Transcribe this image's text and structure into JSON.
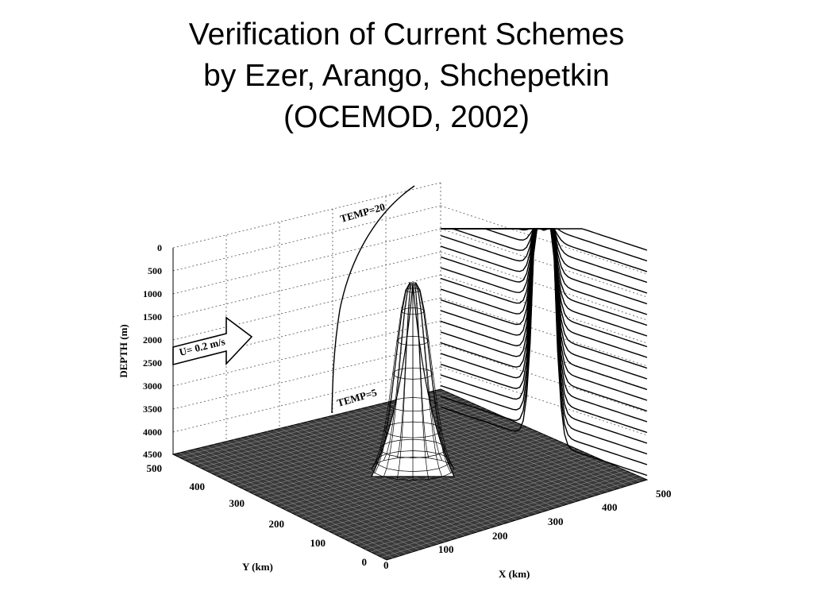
{
  "slide": {
    "title_lines": [
      "Verification of Current Schemes",
      "by Ezer, Arango, Shchepetkin",
      "(OCEMOD, 2002)"
    ]
  },
  "figure": {
    "depth_axis": {
      "label": "DEPTH (m)",
      "ticks": [
        "0",
        "500",
        "1000",
        "1500",
        "2000",
        "2500",
        "3000",
        "3500",
        "4000",
        "4500"
      ]
    },
    "y_axis": {
      "label": "Y (km)",
      "ticks": [
        "500",
        "400",
        "300",
        "200",
        "100",
        "0"
      ]
    },
    "x_axis": {
      "label": "X (km)",
      "ticks": [
        "0",
        "100",
        "200",
        "300",
        "400",
        "500"
      ]
    },
    "annotations": {
      "flow_arrow": "U= 0.2 m/s",
      "temp_top": "TEMP=20",
      "temp_bottom": "TEMP=5"
    }
  }
}
